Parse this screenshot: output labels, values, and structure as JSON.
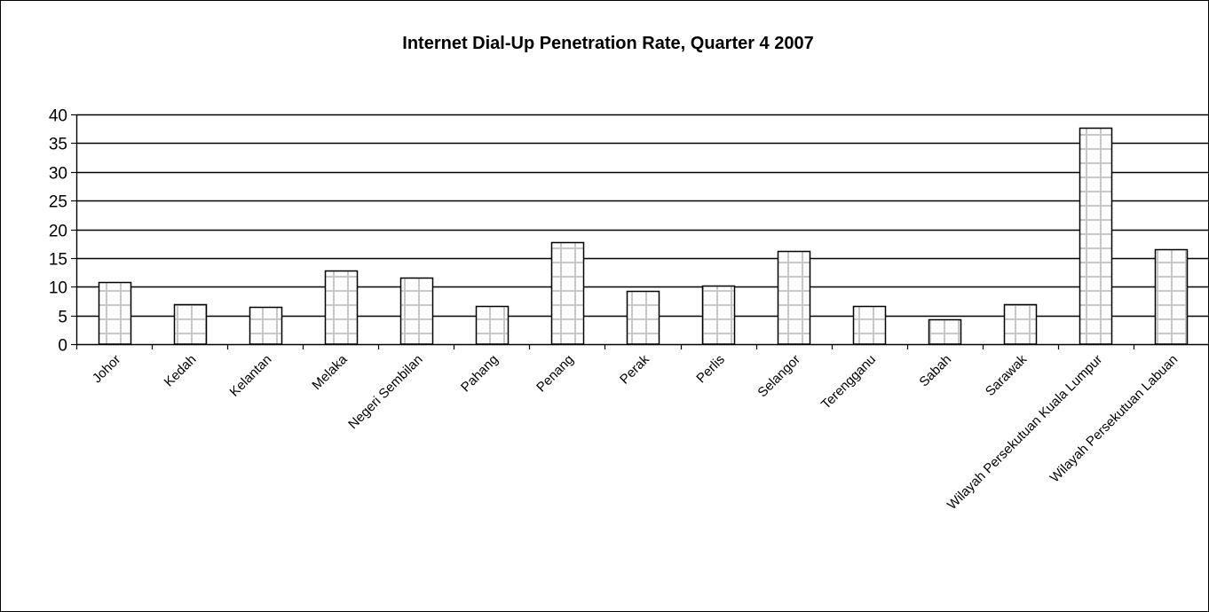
{
  "chart_data": {
    "type": "bar",
    "title": "Internet Dial-Up Penetration Rate, Quarter 4 2007",
    "xlabel": "",
    "ylabel": "",
    "ylim": [
      0,
      40
    ],
    "yticks": [
      "0",
      "5",
      "10",
      "15",
      "20",
      "25",
      "30",
      "35",
      "40"
    ],
    "grid": true,
    "legend": "none",
    "categories": [
      "Johor",
      "Kedah",
      "Kelantan",
      "Melaka",
      "Negeri Sembilan",
      "Pahang",
      "Penang",
      "Perak",
      "Perlis",
      "Selangor",
      "Terengganu",
      "Sabah",
      "Sarawak",
      "Wilayah Persekutuan Kuala Lumpur",
      "Wilayah Persekutuan Labuan"
    ],
    "values": [
      10.8,
      7.0,
      6.5,
      12.8,
      11.6,
      6.7,
      17.7,
      9.3,
      10.2,
      16.2,
      6.7,
      4.3,
      7.0,
      37.7,
      16.5
    ],
    "colors": {
      "bar_fill": "#ffffff",
      "bar_pattern": "#c8c8c8",
      "bar_stroke": "#000000",
      "gridline": "#000000",
      "text": "#000000"
    }
  }
}
